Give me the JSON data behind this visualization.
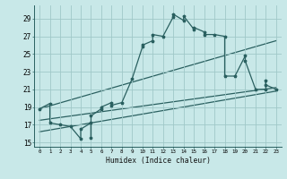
{
  "title": "",
  "xlabel": "Humidex (Indice chaleur)",
  "bg_color": "#c8e8e8",
  "grid_color": "#a0c8c8",
  "line_color": "#2a6060",
  "xlim": [
    -0.5,
    23.5
  ],
  "ylim": [
    14.5,
    30.5
  ],
  "xticks": [
    0,
    1,
    2,
    3,
    4,
    5,
    6,
    7,
    8,
    9,
    10,
    11,
    12,
    13,
    14,
    15,
    16,
    17,
    18,
    19,
    20,
    21,
    22,
    23
  ],
  "yticks": [
    15,
    17,
    19,
    21,
    23,
    25,
    27,
    29
  ],
  "main_line_x": [
    0,
    1,
    1,
    2,
    3,
    4,
    4,
    5,
    5,
    5,
    6,
    6,
    7,
    7,
    8,
    9,
    10,
    10,
    11,
    11,
    12,
    13,
    13,
    14,
    14,
    15,
    15,
    16,
    16,
    17,
    18,
    18,
    19,
    20,
    20,
    21,
    22,
    22,
    22,
    23
  ],
  "main_line_y": [
    18.8,
    19.4,
    17.2,
    17.0,
    16.8,
    15.4,
    16.5,
    17.2,
    15.5,
    18.0,
    18.8,
    19.0,
    19.5,
    19.2,
    19.5,
    22.2,
    25.8,
    26.0,
    26.5,
    27.2,
    27.0,
    29.2,
    29.5,
    28.8,
    29.3,
    27.8,
    28.0,
    27.5,
    27.2,
    27.2,
    27.0,
    22.5,
    22.5,
    24.8,
    24.2,
    21.0,
    21.0,
    22.0,
    21.5,
    21.0
  ],
  "trend_line1_x": [
    0,
    23
  ],
  "trend_line1_y": [
    18.8,
    26.5
  ],
  "trend_line2_x": [
    0,
    23
  ],
  "trend_line2_y": [
    17.5,
    21.2
  ],
  "trend_line3_x": [
    0,
    23
  ],
  "trend_line3_y": [
    16.2,
    20.8
  ]
}
